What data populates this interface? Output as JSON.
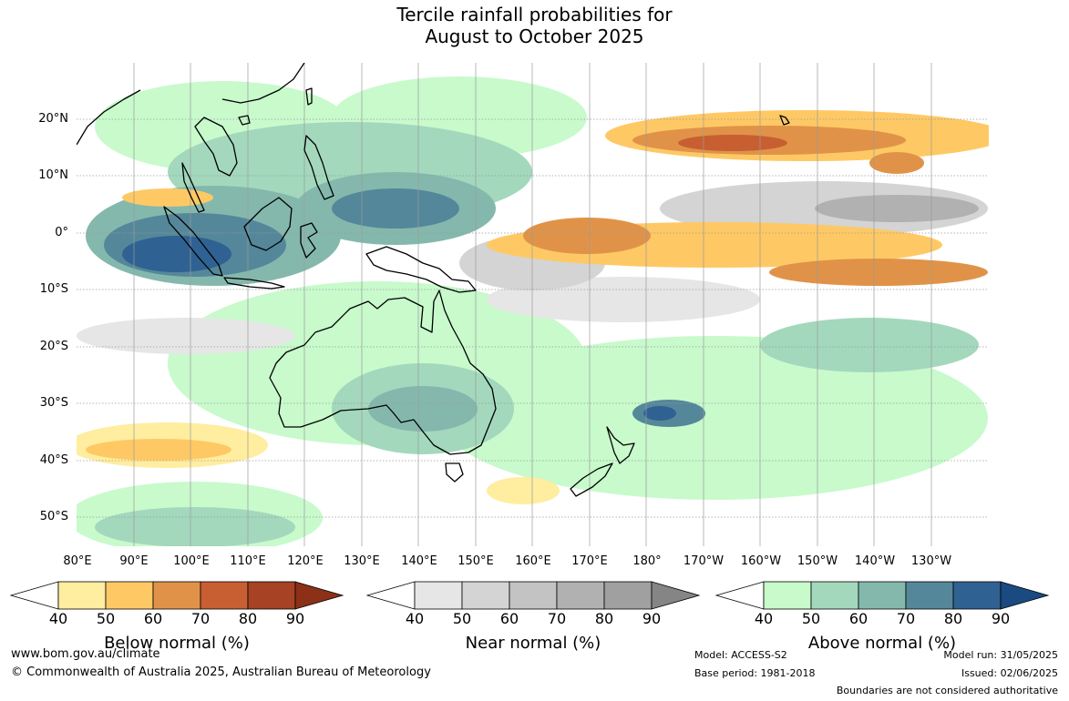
{
  "title": {
    "line1": "Tercile rainfall probabilities for",
    "line2": "August to October 2025"
  },
  "map": {
    "lat_labels": [
      "20°N",
      "10°N",
      "0°",
      "10°S",
      "20°S",
      "30°S",
      "40°S",
      "50°S"
    ],
    "lon_labels": [
      "80°E",
      "90°E",
      "100°E",
      "110°E",
      "120°E",
      "130°E",
      "140°E",
      "150°E",
      "160°E",
      "170°E",
      "180°",
      "170°W",
      "160°W",
      "150°W",
      "140°W",
      "130°W"
    ]
  },
  "colorbars": [
    {
      "label": "Below normal (%)",
      "ticks": [
        "40",
        "50",
        "60",
        "70",
        "80",
        "90"
      ],
      "colors": [
        "#ffffff",
        "#ffeda0",
        "#fec965",
        "#e09348",
        "#c75f32",
        "#a74224",
        "#8c3018"
      ]
    },
    {
      "label": "Near normal (%)",
      "ticks": [
        "40",
        "50",
        "60",
        "70",
        "80",
        "90"
      ],
      "colors": [
        "#ffffff",
        "#e6e6e6",
        "#d4d4d4",
        "#c3c3c3",
        "#b1b1b1",
        "#a0a0a0",
        "#858585"
      ]
    },
    {
      "label": "Above normal (%)",
      "ticks": [
        "40",
        "50",
        "60",
        "70",
        "80",
        "90"
      ],
      "colors": [
        "#ffffff",
        "#c8facc",
        "#a3d8bd",
        "#84b8ad",
        "#55879a",
        "#2f6292",
        "#1b4a80"
      ]
    }
  ],
  "footer": {
    "website": "www.bom.gov.au/climate",
    "copyright": "© Commonwealth of Australia 2025, Australian Bureau of Meteorology",
    "model": "Model: ACCESS-S2",
    "base_period": "Base period: 1981-2018",
    "model_run": "Model run: 31/05/2025",
    "issued": "Issued: 02/06/2025",
    "boundaries_note": "Boundaries are not considered authoritative"
  }
}
